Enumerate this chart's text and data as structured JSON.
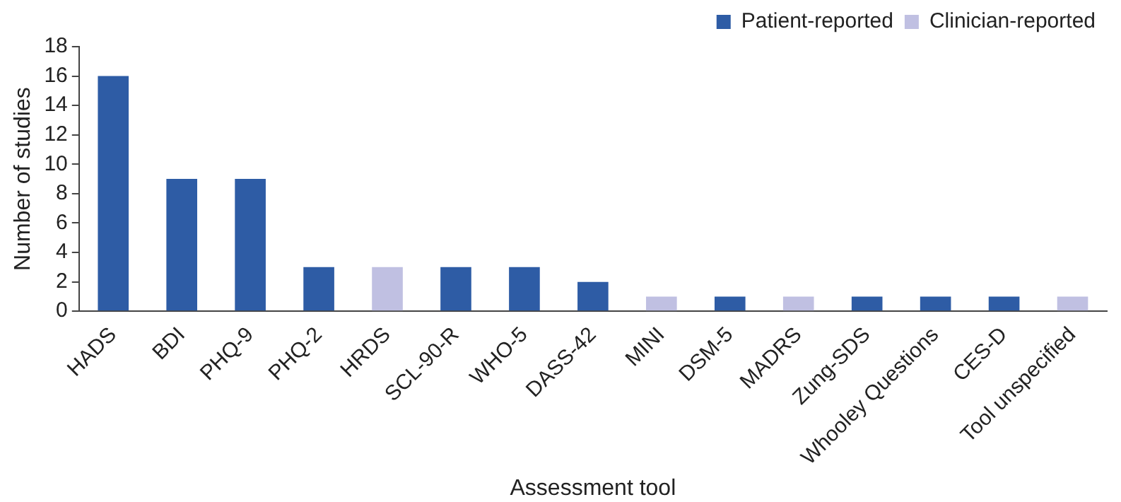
{
  "chart_data": {
    "type": "bar",
    "xlabel": "Assessment tool",
    "ylabel": "Number of studies",
    "categories": [
      "HADS",
      "BDI",
      "PHQ-9",
      "PHQ-2",
      "HRDS",
      "SCL-90-R",
      "WHO-5",
      "DASS-42",
      "MINI",
      "DSM-5",
      "MADRS",
      "Zung-SDS",
      "Whooley Questions",
      "CES-D",
      "Tool unspecified"
    ],
    "series": [
      {
        "name": "Patient-reported",
        "color": "#2e5ca5",
        "values": [
          16,
          9,
          9,
          3,
          null,
          3,
          3,
          2,
          null,
          1,
          null,
          1,
          1,
          1,
          null
        ]
      },
      {
        "name": "Clinician-reported",
        "color": "#c0c0e2",
        "values": [
          null,
          null,
          null,
          null,
          3,
          null,
          null,
          null,
          1,
          null,
          1,
          null,
          null,
          null,
          1
        ]
      }
    ],
    "ylim": [
      0,
      18
    ],
    "yticks": [
      0,
      2,
      4,
      6,
      8,
      10,
      12,
      14,
      16,
      18
    ],
    "grid": false,
    "legend": "top right"
  }
}
